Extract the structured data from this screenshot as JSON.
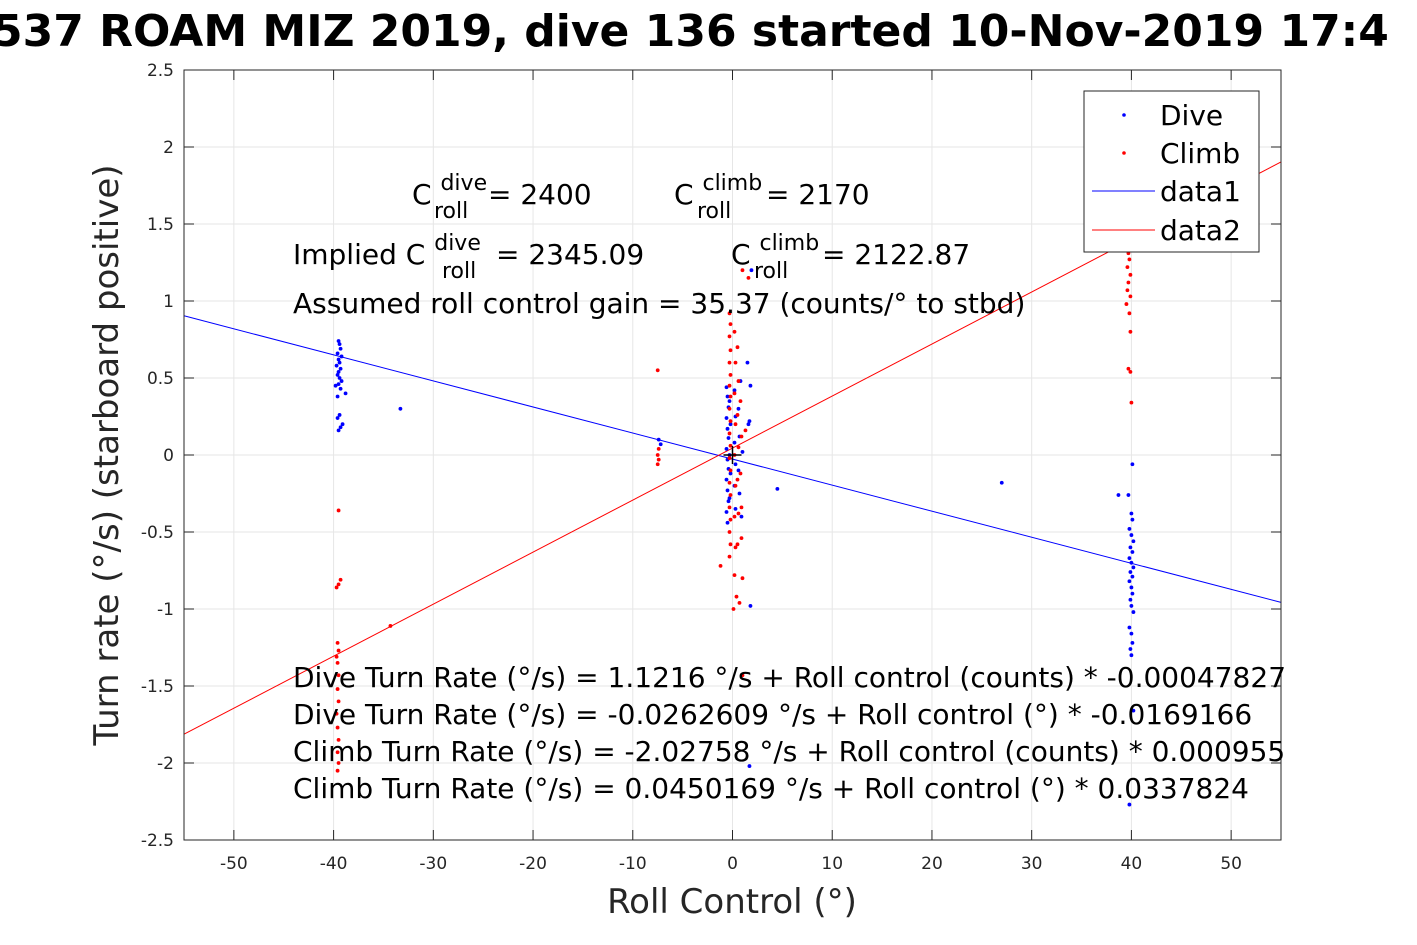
{
  "chart_data": {
    "type": "scatter",
    "title": "537 ROAM MIZ 2019, dive 136 started 10-Nov-2019 17:4",
    "xlabel": "Roll Control (°)",
    "ylabel": "Turn rate (°/s) (starboard positive)",
    "xlim": [
      -55,
      55
    ],
    "ylim": [
      -2.5,
      2.5
    ],
    "xticks": [
      -50,
      -40,
      -30,
      -20,
      -10,
      0,
      10,
      20,
      30,
      40,
      50
    ],
    "yticks": [
      -2.5,
      -2,
      -1.5,
      -1,
      -0.5,
      0,
      0.5,
      1,
      1.5,
      2,
      2.5
    ],
    "xtick_labels": [
      "-50",
      "-40",
      "-30",
      "-20",
      "-10",
      "0",
      "10",
      "20",
      "30",
      "40",
      "50"
    ],
    "ytick_labels": [
      "-2.5",
      "-2",
      "-1.5",
      "-1",
      "-0.5",
      "0",
      "0.5",
      "1",
      "1.5",
      "2",
      "2.5"
    ],
    "grid": true,
    "legend": {
      "placement": "top-right",
      "entries": [
        "Dive",
        "Climb",
        "data1",
        "data2"
      ]
    },
    "colors": {
      "dive": "#0000ff",
      "climb": "#ff0000",
      "axis": "#262626",
      "grid": "#e6e6e6"
    },
    "series": [
      {
        "name": "Dive",
        "kind": "points",
        "color": "#0000ff",
        "points": [
          [
            -39.5,
            0.74
          ],
          [
            -39.4,
            0.72
          ],
          [
            -39.3,
            0.69
          ],
          [
            -39.6,
            0.66
          ],
          [
            -39.2,
            0.64
          ],
          [
            -39.5,
            0.62
          ],
          [
            -39.4,
            0.6
          ],
          [
            -39.7,
            0.58
          ],
          [
            -39.3,
            0.56
          ],
          [
            -39.5,
            0.54
          ],
          [
            -39.6,
            0.52
          ],
          [
            -39.4,
            0.5
          ],
          [
            -39.2,
            0.48
          ],
          [
            -39.5,
            0.46
          ],
          [
            -39.8,
            0.45
          ],
          [
            -39.3,
            0.43
          ],
          [
            -38.8,
            0.4
          ],
          [
            -39.6,
            0.38
          ],
          [
            -39.4,
            0.26
          ],
          [
            -39.6,
            0.24
          ],
          [
            -39.1,
            0.2
          ],
          [
            -39.3,
            0.18
          ],
          [
            -39.5,
            0.16
          ],
          [
            -33.3,
            0.3
          ],
          [
            -7.4,
            0.1
          ],
          [
            -7.2,
            0.07
          ],
          [
            -0.6,
            0.44
          ],
          [
            -0.5,
            0.38
          ],
          [
            -0.4,
            0.31
          ],
          [
            -0.6,
            0.24
          ],
          [
            -0.5,
            0.17
          ],
          [
            -0.4,
            0.11
          ],
          [
            -0.6,
            0.04
          ],
          [
            -0.5,
            -0.03
          ],
          [
            -0.4,
            -0.09
          ],
          [
            -0.6,
            -0.16
          ],
          [
            -0.5,
            -0.23
          ],
          [
            -0.4,
            -0.3
          ],
          [
            -0.6,
            -0.37
          ],
          [
            -0.5,
            -0.44
          ],
          [
            -0.3,
            0.35
          ],
          [
            -0.2,
            0.2
          ],
          [
            -0.3,
            0.0
          ],
          [
            -0.2,
            -0.12
          ],
          [
            -0.3,
            -0.28
          ],
          [
            0.2,
            0.42
          ],
          [
            0.3,
            0.25
          ],
          [
            0.2,
            0.08
          ],
          [
            0.3,
            -0.06
          ],
          [
            0.2,
            -0.2
          ],
          [
            0.3,
            -0.35
          ],
          [
            0.6,
            0.3
          ],
          [
            0.7,
            0.12
          ],
          [
            0.6,
            -0.1
          ],
          [
            0.7,
            -0.25
          ],
          [
            0.8,
            0.48
          ],
          [
            0.9,
            -0.4
          ],
          [
            1.0,
            0.02
          ],
          [
            1.5,
            0.6
          ],
          [
            1.6,
            0.2
          ],
          [
            1.8,
            0.45
          ],
          [
            1.7,
            0.22
          ],
          [
            1.9,
            1.2
          ],
          [
            1.8,
            -0.98
          ],
          [
            1.7,
            -2.02
          ],
          [
            4.5,
            -0.22
          ],
          [
            27.0,
            -0.18
          ],
          [
            38.7,
            -0.26
          ],
          [
            39.7,
            -0.26
          ],
          [
            40.1,
            -0.06
          ],
          [
            40.0,
            -0.38
          ],
          [
            40.1,
            -0.42
          ],
          [
            39.8,
            -0.48
          ],
          [
            40.0,
            -0.52
          ],
          [
            40.2,
            -0.56
          ],
          [
            39.9,
            -0.6
          ],
          [
            40.1,
            -0.63
          ],
          [
            39.8,
            -0.67
          ],
          [
            40.0,
            -0.7
          ],
          [
            40.2,
            -0.73
          ],
          [
            39.9,
            -0.76
          ],
          [
            40.1,
            -0.79
          ],
          [
            39.8,
            -0.82
          ],
          [
            40.0,
            -0.86
          ],
          [
            40.1,
            -0.9
          ],
          [
            39.9,
            -0.94
          ],
          [
            40.0,
            -0.98
          ],
          [
            40.2,
            -1.02
          ],
          [
            39.8,
            -1.12
          ],
          [
            40.0,
            -1.16
          ],
          [
            40.1,
            -1.22
          ],
          [
            39.9,
            -1.26
          ],
          [
            40.0,
            -1.3
          ],
          [
            40.2,
            -1.66
          ],
          [
            39.8,
            -2.27
          ]
        ]
      },
      {
        "name": "Climb",
        "kind": "points",
        "color": "#ff0000",
        "points": [
          [
            -39.5,
            -0.36
          ],
          [
            -39.3,
            -0.81
          ],
          [
            -39.5,
            -0.84
          ],
          [
            -39.7,
            -0.86
          ],
          [
            -39.6,
            -1.22
          ],
          [
            -39.5,
            -1.27
          ],
          [
            -39.7,
            -1.31
          ],
          [
            -39.6,
            -1.35
          ],
          [
            -39.5,
            -1.43
          ],
          [
            -39.6,
            -1.52
          ],
          [
            -39.5,
            -1.6
          ],
          [
            -39.7,
            -1.68
          ],
          [
            -39.6,
            -1.77
          ],
          [
            -39.5,
            -1.85
          ],
          [
            -39.6,
            -1.93
          ],
          [
            -39.5,
            -2.0
          ],
          [
            -39.6,
            -2.05
          ],
          [
            -34.3,
            -1.11
          ],
          [
            -7.5,
            0.55
          ],
          [
            -7.4,
            0.04
          ],
          [
            -7.5,
            0.0
          ],
          [
            -7.4,
            -0.03
          ],
          [
            -7.5,
            -0.06
          ],
          [
            -1.2,
            -0.72
          ],
          [
            -0.3,
            0.92
          ],
          [
            -0.2,
            0.85
          ],
          [
            -0.3,
            0.77
          ],
          [
            -0.2,
            0.68
          ],
          [
            -0.3,
            0.6
          ],
          [
            -0.2,
            0.52
          ],
          [
            -0.3,
            0.45
          ],
          [
            -0.2,
            0.38
          ],
          [
            -0.3,
            0.3
          ],
          [
            -0.2,
            0.22
          ],
          [
            -0.3,
            0.14
          ],
          [
            -0.2,
            0.06
          ],
          [
            -0.3,
            -0.02
          ],
          [
            -0.2,
            -0.1
          ],
          [
            -0.3,
            -0.18
          ],
          [
            -0.2,
            -0.26
          ],
          [
            -0.3,
            -0.34
          ],
          [
            -0.2,
            -0.42
          ],
          [
            -0.3,
            -0.5
          ],
          [
            -0.2,
            -0.58
          ],
          [
            -0.3,
            -0.66
          ],
          [
            0.2,
            0.8
          ],
          [
            0.3,
            0.6
          ],
          [
            0.2,
            0.4
          ],
          [
            0.3,
            0.2
          ],
          [
            0.2,
            0.0
          ],
          [
            0.3,
            -0.2
          ],
          [
            0.2,
            -0.4
          ],
          [
            0.3,
            -0.6
          ],
          [
            0.5,
            0.7
          ],
          [
            0.6,
            0.48
          ],
          [
            0.5,
            0.26
          ],
          [
            0.6,
            0.05
          ],
          [
            0.5,
            -0.16
          ],
          [
            0.6,
            -0.38
          ],
          [
            0.5,
            -0.58
          ],
          [
            0.8,
            0.35
          ],
          [
            0.9,
            0.12
          ],
          [
            0.8,
            -0.12
          ],
          [
            0.9,
            -0.34
          ],
          [
            0.2,
            -0.78
          ],
          [
            0.4,
            -0.92
          ],
          [
            0.1,
            -1.0
          ],
          [
            0.7,
            -0.96
          ],
          [
            1.0,
            -0.8
          ],
          [
            0.9,
            -0.54
          ],
          [
            1.3,
            0.16
          ],
          [
            1.6,
            1.15
          ],
          [
            1.0,
            -1.43
          ],
          [
            1.0,
            1.2
          ],
          [
            39.4,
            1.4
          ],
          [
            39.7,
            1.31
          ],
          [
            39.8,
            1.27
          ],
          [
            39.6,
            1.22
          ],
          [
            39.9,
            1.17
          ],
          [
            39.7,
            1.12
          ],
          [
            39.6,
            1.07
          ],
          [
            39.9,
            1.03
          ],
          [
            39.5,
            0.98
          ],
          [
            39.8,
            0.92
          ],
          [
            39.9,
            0.8
          ],
          [
            39.7,
            0.56
          ],
          [
            39.9,
            0.54
          ],
          [
            40.0,
            0.34
          ]
        ]
      },
      {
        "name": "data1",
        "kind": "line",
        "color": "#0000ff",
        "x": [
          -55,
          55
        ],
        "y": [
          0.904,
          -0.957
        ]
      },
      {
        "name": "data2",
        "kind": "line",
        "color": "#ff0000",
        "x": [
          -55,
          55
        ],
        "y": [
          -1.813,
          1.903
        ]
      }
    ],
    "center_marker": {
      "x": 0,
      "y": 0,
      "symbol": "+",
      "color": "#000000"
    },
    "annotations": {
      "c_roll_dive": {
        "base": "C",
        "sup": "dive",
        "sub": "roll",
        "value": " = 2400"
      },
      "c_roll_climb": {
        "base": "C",
        "sup": "climb",
        "sub": "roll",
        "value": " = 2170"
      },
      "implied_prefix": "Implied ",
      "implied_dive": {
        "base": "C",
        "sup": "dive",
        "sub": "roll",
        "value": " = 2345.09"
      },
      "implied_climb": {
        "base": "C",
        "sup": "climb",
        "sub": "roll",
        "value": " = 2122.87"
      },
      "gain": "Assumed roll control gain = 35.37 (counts/° to stbd)",
      "eq1": "Dive Turn Rate (°/s) = 1.1216 °/s + Roll control (counts) * -0.00047827",
      "eq2": "Dive Turn Rate (°/s) = -0.0262609 °/s + Roll control (°) * -0.0169166",
      "eq3": "Climb Turn Rate (°/s) = -2.02758 °/s + Roll control (counts) * 0.000955",
      "eq4": "Climb Turn Rate (°/s) = 0.0450169 °/s + Roll control (°) * 0.0337824"
    }
  }
}
